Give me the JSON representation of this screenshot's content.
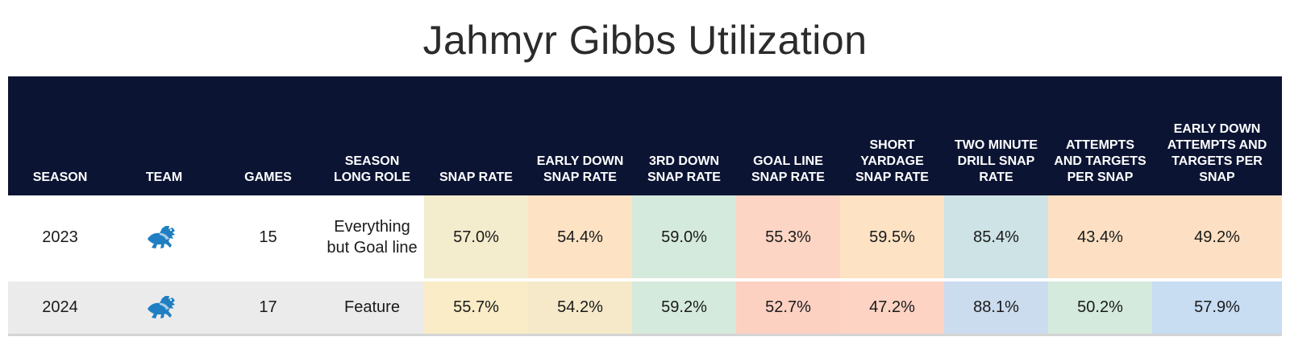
{
  "title": "Jahmyr Gibbs Utilization",
  "chart_data": {
    "type": "table",
    "title": "Jahmyr Gibbs Utilization",
    "columns": [
      "SEASON",
      "TEAM",
      "GAMES",
      "SEASON LONG ROLE",
      "SNAP RATE",
      "EARLY DOWN SNAP RATE",
      "3RD DOWN SNAP RATE",
      "GOAL LINE SNAP RATE",
      "SHORT YARDAGE SNAP RATE",
      "TWO MINUTE DRILL SNAP RATE",
      "ATTEMPTS AND TARGETS PER SNAP",
      "EARLY DOWN ATTEMPTS AND TARGETS PER SNAP"
    ],
    "rows": [
      {
        "season": "2023",
        "team_icon": "detroit-lions-logo",
        "games": "15",
        "role": "Everything but Goal line",
        "values": [
          "57.0%",
          "54.4%",
          "59.0%",
          "55.3%",
          "59.5%",
          "85.4%",
          "43.4%",
          "49.2%"
        ],
        "colors": [
          "#f3eccd",
          "#fde3c4",
          "#d4eadc",
          "#fdd5c5",
          "#fde3c4",
          "#cde3e6",
          "#fde0c3",
          "#fde0c3"
        ]
      },
      {
        "season": "2024",
        "team_icon": "detroit-lions-logo",
        "games": "17",
        "role": "Feature",
        "values": [
          "55.7%",
          "54.2%",
          "59.2%",
          "52.7%",
          "47.2%",
          "88.1%",
          "50.2%",
          "57.9%"
        ],
        "colors": [
          "#f9ecc6",
          "#f6e9c9",
          "#d4eadc",
          "#fdd1c2",
          "#fdd3c3",
          "#cbdcef",
          "#d4eadc",
          "#c8dcf2"
        ]
      }
    ]
  }
}
